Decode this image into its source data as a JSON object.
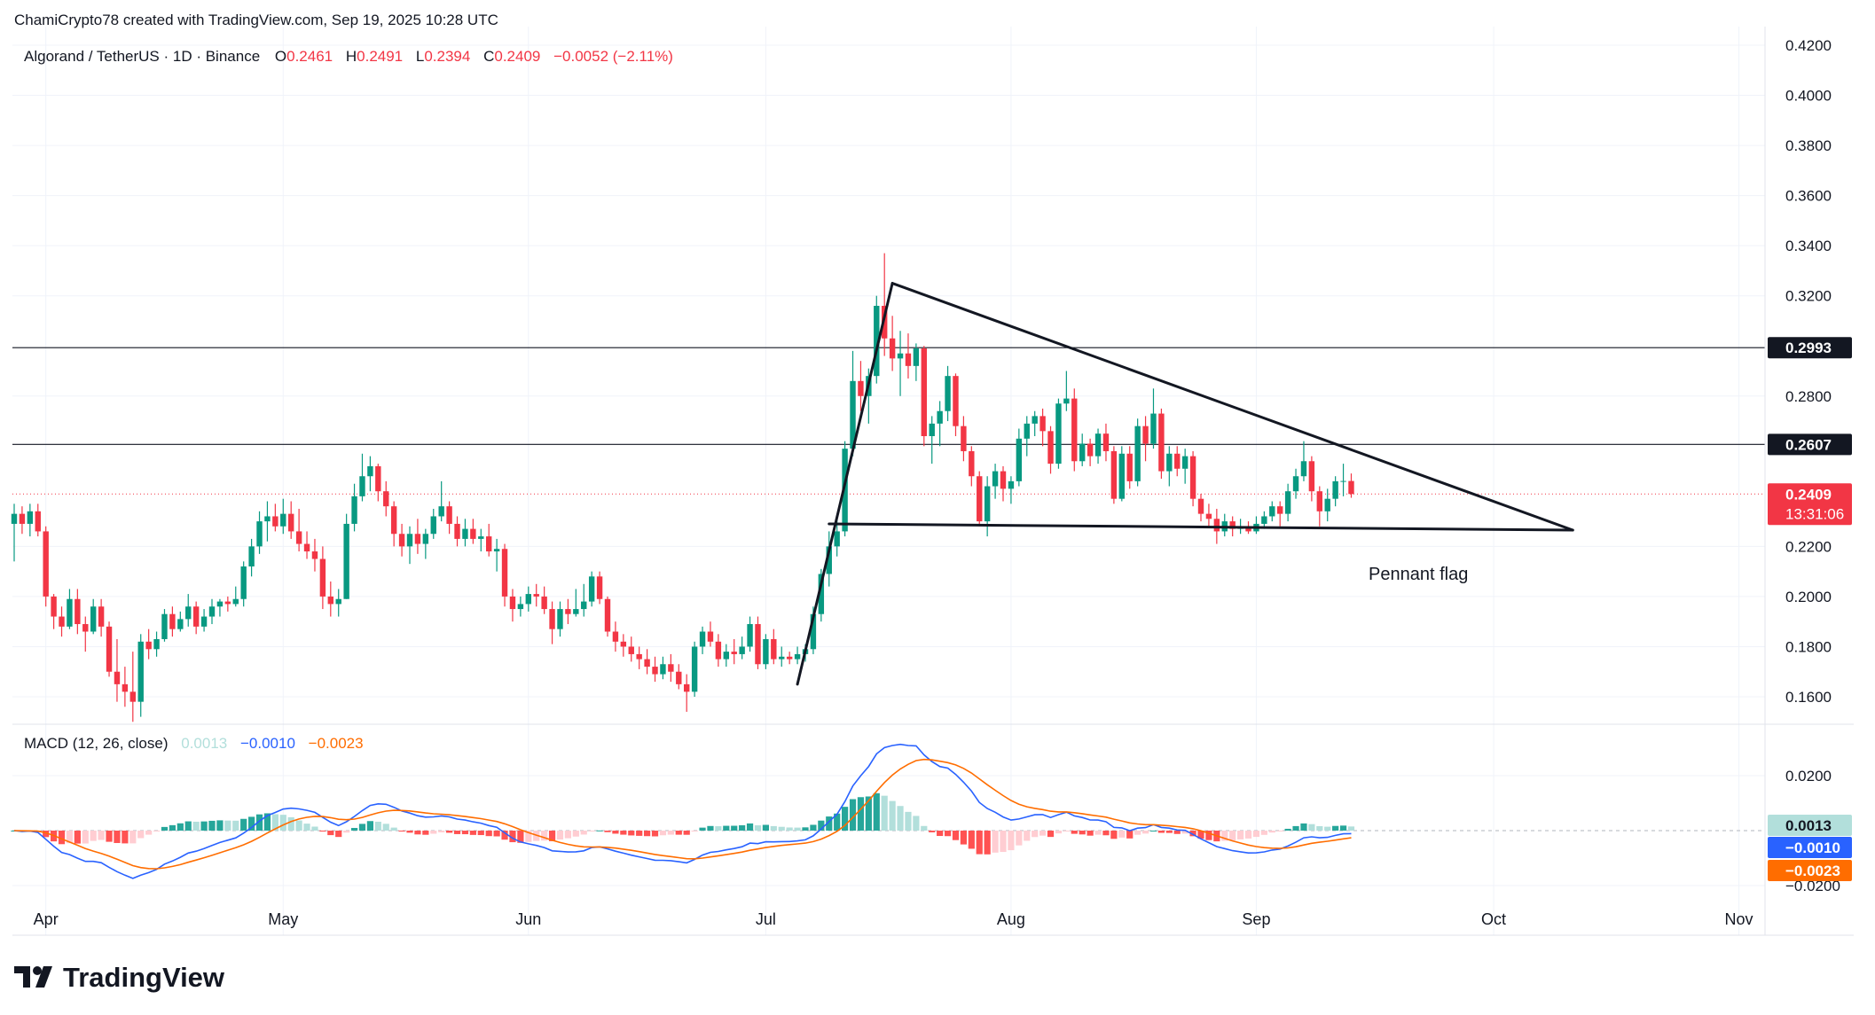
{
  "header": {
    "attribution": "ChamiCrypto78 created with TradingView.com, Sep 19, 2025 10:28 UTC"
  },
  "legend": {
    "symbol": "Algorand / TetherUS · 1D · Binance",
    "o_label": "O",
    "o_value": "0.2461",
    "h_label": "H",
    "h_value": "0.2491",
    "l_label": "L",
    "l_value": "0.2394",
    "c_label": "C",
    "c_value": "0.2409",
    "change": "−0.0052 (−2.11%)"
  },
  "macd_legend": {
    "title": "MACD (12, 26, close)",
    "histogram": "0.0013",
    "macd": "−0.0010",
    "signal": "−0.0023"
  },
  "colors": {
    "up": "#089981",
    "down": "#f23645",
    "macd_line": "#2962ff",
    "signal_line": "#ff6d00",
    "hist_up_strong": "#26a69a",
    "hist_up_weak": "#b2dfdb",
    "hist_down_strong": "#ff5252",
    "hist_down_weak": "#ffcdd2",
    "grid": "#f0f3fa",
    "text": "#131722"
  },
  "labels": {
    "pattern": "Pennant flag",
    "brand": "TradingView",
    "price_badge": "0.2409",
    "countdown": "13:31:06",
    "resistance_1": "0.2993",
    "resistance_2": "0.2607",
    "macd_hist_badge": "0.0013",
    "macd_badge": "−0.0010",
    "signal_badge": "−0.0023"
  },
  "chart_data": {
    "type": "candlestick",
    "price_axis_ticks": [
      "0.4200",
      "0.4000",
      "0.3800",
      "0.3600",
      "0.3400",
      "0.3200",
      "0.2800",
      "0.2200",
      "0.2000",
      "0.1800",
      "0.1600"
    ],
    "macd_axis_ticks": [
      "0.0200",
      "−0.0200"
    ],
    "x_axis_ticks": [
      "Apr",
      "May",
      "Jun",
      "Jul",
      "Aug",
      "Sep",
      "Oct",
      "Nov"
    ],
    "ylim": [
      0.148,
      0.428
    ],
    "macd_ylim": [
      -0.028,
      0.028
    ],
    "horizontal_lines": [
      0.2993,
      0.2607
    ],
    "last_price": 0.2409,
    "start_date": "2025-03-28",
    "candles": [
      {
        "o": 0.229,
        "h": 0.237,
        "l": 0.214,
        "c": 0.233
      },
      {
        "o": 0.233,
        "h": 0.236,
        "l": 0.225,
        "c": 0.229
      },
      {
        "o": 0.229,
        "h": 0.237,
        "l": 0.224,
        "c": 0.234
      },
      {
        "o": 0.234,
        "h": 0.237,
        "l": 0.224,
        "c": 0.226
      },
      {
        "o": 0.226,
        "h": 0.228,
        "l": 0.196,
        "c": 0.2
      },
      {
        "o": 0.2,
        "h": 0.201,
        "l": 0.187,
        "c": 0.192
      },
      {
        "o": 0.192,
        "h": 0.196,
        "l": 0.184,
        "c": 0.188
      },
      {
        "o": 0.188,
        "h": 0.203,
        "l": 0.187,
        "c": 0.199
      },
      {
        "o": 0.199,
        "h": 0.203,
        "l": 0.185,
        "c": 0.189
      },
      {
        "o": 0.189,
        "h": 0.192,
        "l": 0.178,
        "c": 0.186
      },
      {
        "o": 0.186,
        "h": 0.199,
        "l": 0.185,
        "c": 0.196
      },
      {
        "o": 0.196,
        "h": 0.199,
        "l": 0.184,
        "c": 0.188
      },
      {
        "o": 0.188,
        "h": 0.19,
        "l": 0.168,
        "c": 0.17
      },
      {
        "o": 0.17,
        "h": 0.183,
        "l": 0.158,
        "c": 0.165
      },
      {
        "o": 0.165,
        "h": 0.172,
        "l": 0.156,
        "c": 0.162
      },
      {
        "o": 0.162,
        "h": 0.178,
        "l": 0.15,
        "c": 0.158
      },
      {
        "o": 0.158,
        "h": 0.185,
        "l": 0.152,
        "c": 0.182
      },
      {
        "o": 0.182,
        "h": 0.187,
        "l": 0.175,
        "c": 0.179
      },
      {
        "o": 0.179,
        "h": 0.186,
        "l": 0.176,
        "c": 0.183
      },
      {
        "o": 0.183,
        "h": 0.195,
        "l": 0.182,
        "c": 0.193
      },
      {
        "o": 0.193,
        "h": 0.196,
        "l": 0.184,
        "c": 0.187
      },
      {
        "o": 0.187,
        "h": 0.194,
        "l": 0.186,
        "c": 0.191
      },
      {
        "o": 0.191,
        "h": 0.201,
        "l": 0.188,
        "c": 0.196
      },
      {
        "o": 0.196,
        "h": 0.198,
        "l": 0.185,
        "c": 0.188
      },
      {
        "o": 0.188,
        "h": 0.195,
        "l": 0.186,
        "c": 0.192
      },
      {
        "o": 0.192,
        "h": 0.199,
        "l": 0.189,
        "c": 0.196
      },
      {
        "o": 0.196,
        "h": 0.199,
        "l": 0.192,
        "c": 0.198
      },
      {
        "o": 0.198,
        "h": 0.2,
        "l": 0.194,
        "c": 0.197
      },
      {
        "o": 0.197,
        "h": 0.204,
        "l": 0.196,
        "c": 0.199
      },
      {
        "o": 0.199,
        "h": 0.214,
        "l": 0.196,
        "c": 0.212
      },
      {
        "o": 0.212,
        "h": 0.223,
        "l": 0.208,
        "c": 0.22
      },
      {
        "o": 0.22,
        "h": 0.234,
        "l": 0.217,
        "c": 0.23
      },
      {
        "o": 0.23,
        "h": 0.238,
        "l": 0.222,
        "c": 0.232
      },
      {
        "o": 0.232,
        "h": 0.237,
        "l": 0.226,
        "c": 0.228
      },
      {
        "o": 0.228,
        "h": 0.239,
        "l": 0.225,
        "c": 0.233
      },
      {
        "o": 0.233,
        "h": 0.238,
        "l": 0.223,
        "c": 0.226
      },
      {
        "o": 0.226,
        "h": 0.235,
        "l": 0.218,
        "c": 0.221
      },
      {
        "o": 0.221,
        "h": 0.226,
        "l": 0.215,
        "c": 0.218
      },
      {
        "o": 0.218,
        "h": 0.223,
        "l": 0.21,
        "c": 0.215
      },
      {
        "o": 0.215,
        "h": 0.22,
        "l": 0.195,
        "c": 0.2
      },
      {
        "o": 0.2,
        "h": 0.206,
        "l": 0.192,
        "c": 0.197
      },
      {
        "o": 0.197,
        "h": 0.203,
        "l": 0.192,
        "c": 0.199
      },
      {
        "o": 0.199,
        "h": 0.233,
        "l": 0.199,
        "c": 0.229
      },
      {
        "o": 0.229,
        "h": 0.245,
        "l": 0.226,
        "c": 0.24
      },
      {
        "o": 0.24,
        "h": 0.257,
        "l": 0.238,
        "c": 0.248
      },
      {
        "o": 0.248,
        "h": 0.256,
        "l": 0.242,
        "c": 0.252
      },
      {
        "o": 0.252,
        "h": 0.253,
        "l": 0.238,
        "c": 0.242
      },
      {
        "o": 0.242,
        "h": 0.246,
        "l": 0.232,
        "c": 0.236
      },
      {
        "o": 0.236,
        "h": 0.238,
        "l": 0.22,
        "c": 0.225
      },
      {
        "o": 0.225,
        "h": 0.229,
        "l": 0.216,
        "c": 0.22
      },
      {
        "o": 0.22,
        "h": 0.228,
        "l": 0.213,
        "c": 0.225
      },
      {
        "o": 0.225,
        "h": 0.231,
        "l": 0.217,
        "c": 0.221
      },
      {
        "o": 0.221,
        "h": 0.227,
        "l": 0.215,
        "c": 0.225
      },
      {
        "o": 0.225,
        "h": 0.235,
        "l": 0.223,
        "c": 0.232
      },
      {
        "o": 0.232,
        "h": 0.246,
        "l": 0.23,
        "c": 0.236
      },
      {
        "o": 0.236,
        "h": 0.238,
        "l": 0.225,
        "c": 0.229
      },
      {
        "o": 0.229,
        "h": 0.232,
        "l": 0.22,
        "c": 0.223
      },
      {
        "o": 0.223,
        "h": 0.231,
        "l": 0.22,
        "c": 0.227
      },
      {
        "o": 0.227,
        "h": 0.231,
        "l": 0.221,
        "c": 0.223
      },
      {
        "o": 0.223,
        "h": 0.227,
        "l": 0.218,
        "c": 0.224
      },
      {
        "o": 0.224,
        "h": 0.229,
        "l": 0.216,
        "c": 0.218
      },
      {
        "o": 0.218,
        "h": 0.223,
        "l": 0.21,
        "c": 0.219
      },
      {
        "o": 0.219,
        "h": 0.221,
        "l": 0.196,
        "c": 0.2
      },
      {
        "o": 0.2,
        "h": 0.203,
        "l": 0.19,
        "c": 0.195
      },
      {
        "o": 0.195,
        "h": 0.2,
        "l": 0.192,
        "c": 0.197
      },
      {
        "o": 0.197,
        "h": 0.204,
        "l": 0.194,
        "c": 0.201
      },
      {
        "o": 0.201,
        "h": 0.205,
        "l": 0.196,
        "c": 0.2
      },
      {
        "o": 0.2,
        "h": 0.204,
        "l": 0.193,
        "c": 0.195
      },
      {
        "o": 0.195,
        "h": 0.198,
        "l": 0.181,
        "c": 0.187
      },
      {
        "o": 0.187,
        "h": 0.198,
        "l": 0.184,
        "c": 0.195
      },
      {
        "o": 0.195,
        "h": 0.199,
        "l": 0.189,
        "c": 0.193
      },
      {
        "o": 0.193,
        "h": 0.203,
        "l": 0.192,
        "c": 0.195
      },
      {
        "o": 0.195,
        "h": 0.205,
        "l": 0.192,
        "c": 0.198
      },
      {
        "o": 0.198,
        "h": 0.21,
        "l": 0.196,
        "c": 0.208
      },
      {
        "o": 0.208,
        "h": 0.21,
        "l": 0.197,
        "c": 0.199
      },
      {
        "o": 0.199,
        "h": 0.2,
        "l": 0.184,
        "c": 0.186
      },
      {
        "o": 0.186,
        "h": 0.19,
        "l": 0.178,
        "c": 0.182
      },
      {
        "o": 0.182,
        "h": 0.185,
        "l": 0.176,
        "c": 0.18
      },
      {
        "o": 0.18,
        "h": 0.184,
        "l": 0.174,
        "c": 0.177
      },
      {
        "o": 0.177,
        "h": 0.18,
        "l": 0.171,
        "c": 0.175
      },
      {
        "o": 0.175,
        "h": 0.179,
        "l": 0.169,
        "c": 0.172
      },
      {
        "o": 0.172,
        "h": 0.176,
        "l": 0.166,
        "c": 0.169
      },
      {
        "o": 0.169,
        "h": 0.176,
        "l": 0.167,
        "c": 0.173
      },
      {
        "o": 0.173,
        "h": 0.177,
        "l": 0.166,
        "c": 0.17
      },
      {
        "o": 0.17,
        "h": 0.173,
        "l": 0.163,
        "c": 0.165
      },
      {
        "o": 0.165,
        "h": 0.169,
        "l": 0.154,
        "c": 0.162
      },
      {
        "o": 0.162,
        "h": 0.182,
        "l": 0.16,
        "c": 0.18
      },
      {
        "o": 0.18,
        "h": 0.188,
        "l": 0.177,
        "c": 0.186
      },
      {
        "o": 0.186,
        "h": 0.19,
        "l": 0.18,
        "c": 0.182
      },
      {
        "o": 0.182,
        "h": 0.185,
        "l": 0.172,
        "c": 0.175
      },
      {
        "o": 0.175,
        "h": 0.181,
        "l": 0.172,
        "c": 0.178
      },
      {
        "o": 0.178,
        "h": 0.183,
        "l": 0.173,
        "c": 0.177
      },
      {
        "o": 0.177,
        "h": 0.184,
        "l": 0.175,
        "c": 0.18
      },
      {
        "o": 0.18,
        "h": 0.192,
        "l": 0.178,
        "c": 0.189
      },
      {
        "o": 0.189,
        "h": 0.192,
        "l": 0.171,
        "c": 0.173
      },
      {
        "o": 0.173,
        "h": 0.185,
        "l": 0.171,
        "c": 0.183
      },
      {
        "o": 0.183,
        "h": 0.187,
        "l": 0.173,
        "c": 0.175
      },
      {
        "o": 0.175,
        "h": 0.18,
        "l": 0.172,
        "c": 0.176
      },
      {
        "o": 0.176,
        "h": 0.178,
        "l": 0.173,
        "c": 0.175
      },
      {
        "o": 0.175,
        "h": 0.18,
        "l": 0.173,
        "c": 0.177
      },
      {
        "o": 0.177,
        "h": 0.181,
        "l": 0.174,
        "c": 0.179
      },
      {
        "o": 0.179,
        "h": 0.196,
        "l": 0.177,
        "c": 0.193
      },
      {
        "o": 0.193,
        "h": 0.211,
        "l": 0.19,
        "c": 0.209
      },
      {
        "o": 0.209,
        "h": 0.226,
        "l": 0.204,
        "c": 0.22
      },
      {
        "o": 0.22,
        "h": 0.232,
        "l": 0.216,
        "c": 0.226
      },
      {
        "o": 0.226,
        "h": 0.262,
        "l": 0.224,
        "c": 0.259
      },
      {
        "o": 0.259,
        "h": 0.298,
        "l": 0.256,
        "c": 0.286
      },
      {
        "o": 0.286,
        "h": 0.294,
        "l": 0.274,
        "c": 0.28
      },
      {
        "o": 0.28,
        "h": 0.291,
        "l": 0.269,
        "c": 0.288
      },
      {
        "o": 0.288,
        "h": 0.32,
        "l": 0.285,
        "c": 0.316
      },
      {
        "o": 0.316,
        "h": 0.337,
        "l": 0.296,
        "c": 0.303
      },
      {
        "o": 0.303,
        "h": 0.312,
        "l": 0.29,
        "c": 0.295
      },
      {
        "o": 0.295,
        "h": 0.306,
        "l": 0.28,
        "c": 0.297
      },
      {
        "o": 0.297,
        "h": 0.305,
        "l": 0.287,
        "c": 0.292
      },
      {
        "o": 0.292,
        "h": 0.301,
        "l": 0.286,
        "c": 0.299
      },
      {
        "o": 0.299,
        "h": 0.3,
        "l": 0.26,
        "c": 0.264
      },
      {
        "o": 0.264,
        "h": 0.272,
        "l": 0.253,
        "c": 0.269
      },
      {
        "o": 0.269,
        "h": 0.278,
        "l": 0.26,
        "c": 0.274
      },
      {
        "o": 0.274,
        "h": 0.292,
        "l": 0.27,
        "c": 0.288
      },
      {
        "o": 0.288,
        "h": 0.289,
        "l": 0.264,
        "c": 0.268
      },
      {
        "o": 0.268,
        "h": 0.272,
        "l": 0.254,
        "c": 0.258
      },
      {
        "o": 0.258,
        "h": 0.26,
        "l": 0.244,
        "c": 0.248
      },
      {
        "o": 0.248,
        "h": 0.25,
        "l": 0.228,
        "c": 0.23
      },
      {
        "o": 0.23,
        "h": 0.248,
        "l": 0.224,
        "c": 0.244
      },
      {
        "o": 0.244,
        "h": 0.253,
        "l": 0.239,
        "c": 0.25
      },
      {
        "o": 0.25,
        "h": 0.252,
        "l": 0.238,
        "c": 0.243
      },
      {
        "o": 0.243,
        "h": 0.248,
        "l": 0.237,
        "c": 0.246
      },
      {
        "o": 0.246,
        "h": 0.267,
        "l": 0.244,
        "c": 0.263
      },
      {
        "o": 0.263,
        "h": 0.272,
        "l": 0.256,
        "c": 0.269
      },
      {
        "o": 0.269,
        "h": 0.274,
        "l": 0.264,
        "c": 0.272
      },
      {
        "o": 0.272,
        "h": 0.275,
        "l": 0.26,
        "c": 0.266
      },
      {
        "o": 0.266,
        "h": 0.268,
        "l": 0.249,
        "c": 0.253
      },
      {
        "o": 0.253,
        "h": 0.279,
        "l": 0.251,
        "c": 0.277
      },
      {
        "o": 0.277,
        "h": 0.29,
        "l": 0.274,
        "c": 0.279
      },
      {
        "o": 0.279,
        "h": 0.283,
        "l": 0.25,
        "c": 0.254
      },
      {
        "o": 0.254,
        "h": 0.265,
        "l": 0.252,
        "c": 0.261
      },
      {
        "o": 0.261,
        "h": 0.263,
        "l": 0.252,
        "c": 0.256
      },
      {
        "o": 0.256,
        "h": 0.267,
        "l": 0.253,
        "c": 0.265
      },
      {
        "o": 0.265,
        "h": 0.269,
        "l": 0.254,
        "c": 0.258
      },
      {
        "o": 0.258,
        "h": 0.26,
        "l": 0.237,
        "c": 0.239
      },
      {
        "o": 0.239,
        "h": 0.26,
        "l": 0.238,
        "c": 0.257
      },
      {
        "o": 0.257,
        "h": 0.26,
        "l": 0.243,
        "c": 0.246
      },
      {
        "o": 0.246,
        "h": 0.271,
        "l": 0.244,
        "c": 0.268
      },
      {
        "o": 0.268,
        "h": 0.272,
        "l": 0.254,
        "c": 0.261
      },
      {
        "o": 0.261,
        "h": 0.283,
        "l": 0.259,
        "c": 0.273
      },
      {
        "o": 0.273,
        "h": 0.275,
        "l": 0.247,
        "c": 0.25
      },
      {
        "o": 0.25,
        "h": 0.26,
        "l": 0.244,
        "c": 0.257
      },
      {
        "o": 0.257,
        "h": 0.26,
        "l": 0.248,
        "c": 0.251
      },
      {
        "o": 0.251,
        "h": 0.259,
        "l": 0.245,
        "c": 0.256
      },
      {
        "o": 0.256,
        "h": 0.258,
        "l": 0.236,
        "c": 0.239
      },
      {
        "o": 0.239,
        "h": 0.241,
        "l": 0.23,
        "c": 0.233
      },
      {
        "o": 0.233,
        "h": 0.237,
        "l": 0.228,
        "c": 0.231
      },
      {
        "o": 0.231,
        "h": 0.235,
        "l": 0.221,
        "c": 0.226
      },
      {
        "o": 0.226,
        "h": 0.233,
        "l": 0.224,
        "c": 0.23
      },
      {
        "o": 0.23,
        "h": 0.232,
        "l": 0.224,
        "c": 0.227
      },
      {
        "o": 0.227,
        "h": 0.231,
        "l": 0.225,
        "c": 0.228
      },
      {
        "o": 0.228,
        "h": 0.23,
        "l": 0.225,
        "c": 0.226
      },
      {
        "o": 0.226,
        "h": 0.232,
        "l": 0.225,
        "c": 0.229
      },
      {
        "o": 0.229,
        "h": 0.234,
        "l": 0.227,
        "c": 0.232
      },
      {
        "o": 0.232,
        "h": 0.238,
        "l": 0.23,
        "c": 0.236
      },
      {
        "o": 0.236,
        "h": 0.238,
        "l": 0.228,
        "c": 0.233
      },
      {
        "o": 0.233,
        "h": 0.245,
        "l": 0.23,
        "c": 0.242
      },
      {
        "o": 0.242,
        "h": 0.251,
        "l": 0.239,
        "c": 0.248
      },
      {
        "o": 0.248,
        "h": 0.262,
        "l": 0.246,
        "c": 0.254
      },
      {
        "o": 0.254,
        "h": 0.256,
        "l": 0.238,
        "c": 0.242
      },
      {
        "o": 0.242,
        "h": 0.244,
        "l": 0.228,
        "c": 0.234
      },
      {
        "o": 0.234,
        "h": 0.243,
        "l": 0.23,
        "c": 0.239
      },
      {
        "o": 0.239,
        "h": 0.248,
        "l": 0.236,
        "c": 0.246
      },
      {
        "o": 0.246,
        "h": 0.253,
        "l": 0.24,
        "c": 0.2461
      },
      {
        "o": 0.2461,
        "h": 0.2491,
        "l": 0.2394,
        "c": 0.2409
      }
    ],
    "annotations": [
      {
        "type": "trendline",
        "from": {
          "day": 99,
          "price": 0.165
        },
        "to": {
          "day": 111,
          "price": 0.325
        }
      },
      {
        "type": "trendline",
        "from": {
          "day": 111,
          "price": 0.325
        },
        "to": {
          "day": 197,
          "price": 0.2265
        }
      },
      {
        "type": "trendline",
        "from": {
          "day": 103,
          "price": 0.229
        },
        "to": {
          "day": 197,
          "price": 0.2265
        }
      }
    ]
  }
}
